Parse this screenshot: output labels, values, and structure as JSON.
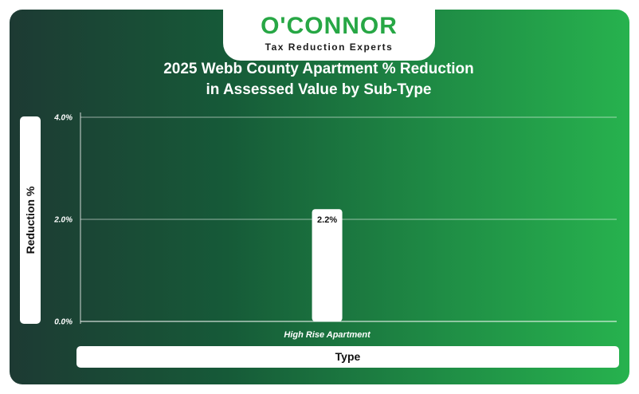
{
  "brand": {
    "name": "O'CONNOR",
    "tagline": "Tax Reduction Experts"
  },
  "colors": {
    "bar": "#ffffff",
    "brand_green": "#27a745",
    "background_start": "#1d3a33",
    "background_end": "#27b24e"
  },
  "chart_data": {
    "type": "bar",
    "title_line1": "2025 Webb County Apartment % Reduction",
    "title_line2": "in Assessed Value by Sub-Type",
    "xlabel": "Type",
    "ylabel": "Reduction %",
    "categories": [
      "High Rise Apartment"
    ],
    "values": [
      2.2
    ],
    "data_labels": [
      "2.2%"
    ],
    "ylim": [
      0,
      4
    ],
    "yticks": [
      0,
      2,
      4
    ],
    "ytick_labels": [
      "0.0%",
      "2.0%",
      "4.0%"
    ],
    "grid": true
  }
}
